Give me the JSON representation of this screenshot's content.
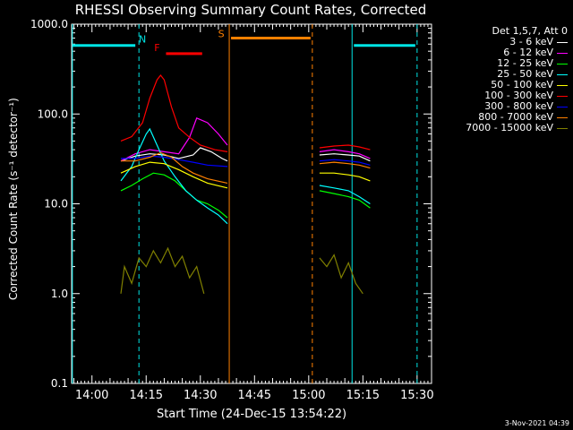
{
  "chart_data": {
    "type": "line",
    "title": "RHESSI Observing Summary Count Rates, Corrected",
    "xlabel": "Start Time (24-Dec-15 13:54:22)",
    "ylabel": "Corrected Count Rate (s⁻¹ detector⁻¹)",
    "yscale": "log",
    "ylim": [
      0.1,
      1000
    ],
    "xlim": [
      "13:54:22",
      "15:34:00"
    ],
    "yticks": [
      "0.1",
      "1.0",
      "10.0",
      "100.0",
      "1000.0"
    ],
    "xticks": [
      "14:00",
      "14:15",
      "14:30",
      "14:45",
      "15:00",
      "15:15",
      "15:30"
    ],
    "legend_header": "Det 1,5,7, Att 0",
    "footer_stamp": "3-Nov-2021 04:39",
    "state_bars": [
      {
        "label": "N",
        "color": "#00e5e5",
        "segments": [
          [
            "13:54:30",
            "14:12:00"
          ],
          [
            "15:12:30",
            "15:29:30"
          ]
        ],
        "y": 580
      },
      {
        "label": "F",
        "color": "#ff0000",
        "segments": [
          [
            "14:20:30",
            "14:30:30"
          ]
        ],
        "y": 470
      },
      {
        "label": "S",
        "color": "#ff8000",
        "segments": [
          [
            "14:38:30",
            "15:00:30"
          ]
        ],
        "y": 700
      }
    ],
    "vertical_markers": [
      {
        "time": "13:54:35",
        "color": "#00e5e5",
        "style": "solid"
      },
      {
        "time": "14:13:00",
        "color": "#00e5e5",
        "style": "dashed"
      },
      {
        "time": "14:38:00",
        "color": "#ff8000",
        "style": "solid"
      },
      {
        "time": "15:01:00",
        "color": "#ff8000",
        "style": "dashed"
      },
      {
        "time": "15:12:00",
        "color": "#00e5e5",
        "style": "solid"
      },
      {
        "time": "15:30:00",
        "color": "#00e5e5",
        "style": "dashed"
      }
    ],
    "series": [
      {
        "name": "3 - 6 keV",
        "color": "#ffffff",
        "points": [
          [
            "14:08",
            "30"
          ],
          [
            "14:12",
            "34"
          ],
          [
            "14:16",
            "36"
          ],
          [
            "14:20",
            "35"
          ],
          [
            "14:24",
            "32"
          ],
          [
            "14:28",
            "35"
          ],
          [
            "14:30",
            "42"
          ],
          [
            "14:33",
            "38"
          ],
          [
            "14:36",
            "32"
          ],
          [
            "14:37:30",
            "30"
          ],
          [
            "15:03",
            "35"
          ],
          [
            "15:07",
            "36"
          ],
          [
            "15:11",
            "35"
          ],
          [
            "15:14",
            "34"
          ],
          [
            "15:17",
            "30"
          ]
        ]
      },
      {
        "name": "6 - 12 keV",
        "color": "#ff00ff",
        "points": [
          [
            "14:08",
            "30"
          ],
          [
            "14:12",
            "36"
          ],
          [
            "14:16",
            "40"
          ],
          [
            "14:20",
            "38"
          ],
          [
            "14:24",
            "36"
          ],
          [
            "14:27",
            "55"
          ],
          [
            "14:29",
            "90"
          ],
          [
            "14:32",
            "80"
          ],
          [
            "14:35",
            "60"
          ],
          [
            "14:37:30",
            "45"
          ],
          [
            "15:03",
            "38"
          ],
          [
            "15:07",
            "40"
          ],
          [
            "15:11",
            "38"
          ],
          [
            "15:14",
            "36"
          ],
          [
            "15:17",
            "32"
          ]
        ]
      },
      {
        "name": "12 - 25 keV",
        "color": "#00ff00",
        "points": [
          [
            "14:08",
            "14"
          ],
          [
            "14:11",
            "16"
          ],
          [
            "14:14",
            "19"
          ],
          [
            "14:17",
            "22"
          ],
          [
            "14:20",
            "21"
          ],
          [
            "14:23",
            "18"
          ],
          [
            "14:26",
            "14"
          ],
          [
            "14:29",
            "11"
          ],
          [
            "14:32",
            "10"
          ],
          [
            "14:35",
            "8.5"
          ],
          [
            "14:37:30",
            "7"
          ],
          [
            "15:03",
            "14"
          ],
          [
            "15:07",
            "13"
          ],
          [
            "15:11",
            "12"
          ],
          [
            "15:14",
            "11"
          ],
          [
            "15:17",
            "9"
          ]
        ]
      },
      {
        "name": "25 - 50 keV",
        "color": "#00ffff",
        "points": [
          [
            "14:08",
            "18"
          ],
          [
            "14:11",
            "26"
          ],
          [
            "14:13",
            "40"
          ],
          [
            "14:15",
            "60"
          ],
          [
            "14:16",
            "68"
          ],
          [
            "14:18",
            "45"
          ],
          [
            "14:20",
            "30"
          ],
          [
            "14:23",
            "20"
          ],
          [
            "14:26",
            "14"
          ],
          [
            "14:29",
            "11"
          ],
          [
            "14:32",
            "9"
          ],
          [
            "14:35",
            "7.5"
          ],
          [
            "14:37:30",
            "6"
          ],
          [
            "15:03",
            "16"
          ],
          [
            "15:07",
            "15"
          ],
          [
            "15:11",
            "14"
          ],
          [
            "15:14",
            "12"
          ],
          [
            "15:17",
            "10"
          ]
        ]
      },
      {
        "name": "50 - 100 keV",
        "color": "#ffff00",
        "points": [
          [
            "14:08",
            "22"
          ],
          [
            "14:12",
            "26"
          ],
          [
            "14:16",
            "29"
          ],
          [
            "14:20",
            "28"
          ],
          [
            "14:24",
            "24"
          ],
          [
            "14:28",
            "20"
          ],
          [
            "14:32",
            "17"
          ],
          [
            "14:37:30",
            "15"
          ],
          [
            "15:03",
            "22"
          ],
          [
            "15:07",
            "22"
          ],
          [
            "15:11",
            "21"
          ],
          [
            "15:14",
            "20"
          ],
          [
            "15:17",
            "18"
          ]
        ]
      },
      {
        "name": "100 - 300 keV",
        "color": "#ff0000",
        "points": [
          [
            "14:08",
            "50"
          ],
          [
            "14:11",
            "56"
          ],
          [
            "14:14",
            "80"
          ],
          [
            "14:16",
            "150"
          ],
          [
            "14:18",
            "240"
          ],
          [
            "14:19",
            "270"
          ],
          [
            "14:20",
            "240"
          ],
          [
            "14:22",
            "120"
          ],
          [
            "14:24",
            "70"
          ],
          [
            "14:27",
            "55"
          ],
          [
            "14:30",
            "45"
          ],
          [
            "14:34",
            "40"
          ],
          [
            "14:37:30",
            "38"
          ],
          [
            "15:03",
            "42"
          ],
          [
            "15:07",
            "44"
          ],
          [
            "15:11",
            "45"
          ],
          [
            "15:14",
            "43"
          ],
          [
            "15:17",
            "40"
          ]
        ]
      },
      {
        "name": "300 - 800 keV",
        "color": "#0000ff",
        "points": [
          [
            "14:08",
            "32"
          ],
          [
            "14:12",
            "32"
          ],
          [
            "14:16",
            "34"
          ],
          [
            "14:20",
            "33"
          ],
          [
            "14:24",
            "31"
          ],
          [
            "14:28",
            "29"
          ],
          [
            "14:32",
            "27"
          ],
          [
            "14:37:30",
            "26"
          ],
          [
            "15:03",
            "30"
          ],
          [
            "15:07",
            "31"
          ],
          [
            "15:11",
            "30"
          ],
          [
            "15:14",
            "29"
          ],
          [
            "15:17",
            "27"
          ]
        ]
      },
      {
        "name": "800 - 7000 keV",
        "color": "#ff8000",
        "points": [
          [
            "14:08",
            "30"
          ],
          [
            "14:12",
            "30"
          ],
          [
            "14:16",
            "33"
          ],
          [
            "14:19",
            "37"
          ],
          [
            "14:22",
            "33"
          ],
          [
            "14:25",
            "26"
          ],
          [
            "14:28",
            "22"
          ],
          [
            "14:32",
            "19"
          ],
          [
            "14:37:30",
            "17"
          ],
          [
            "15:03",
            "28"
          ],
          [
            "15:07",
            "29"
          ],
          [
            "15:11",
            "28"
          ],
          [
            "15:14",
            "27"
          ],
          [
            "15:17",
            "25"
          ]
        ]
      },
      {
        "name": "7000 - 15000 keV",
        "color": "#808000",
        "points": [
          [
            "14:08",
            "1"
          ],
          [
            "14:09",
            "2"
          ],
          [
            "14:11",
            "1.3"
          ],
          [
            "14:13",
            "2.5"
          ],
          [
            "14:15",
            "2"
          ],
          [
            "14:17",
            "3"
          ],
          [
            "14:19",
            "2.2"
          ],
          [
            "14:21",
            "3.2"
          ],
          [
            "14:23",
            "2"
          ],
          [
            "14:25",
            "2.6"
          ],
          [
            "14:27",
            "1.5"
          ],
          [
            "14:29",
            "2"
          ],
          [
            "14:31",
            "1"
          ],
          [
            "15:03",
            "2.5"
          ],
          [
            "15:05",
            "2"
          ],
          [
            "15:07",
            "2.7"
          ],
          [
            "15:09",
            "1.5"
          ],
          [
            "15:11",
            "2.2"
          ],
          [
            "15:13",
            "1.3"
          ],
          [
            "15:15",
            "1"
          ]
        ]
      }
    ]
  }
}
